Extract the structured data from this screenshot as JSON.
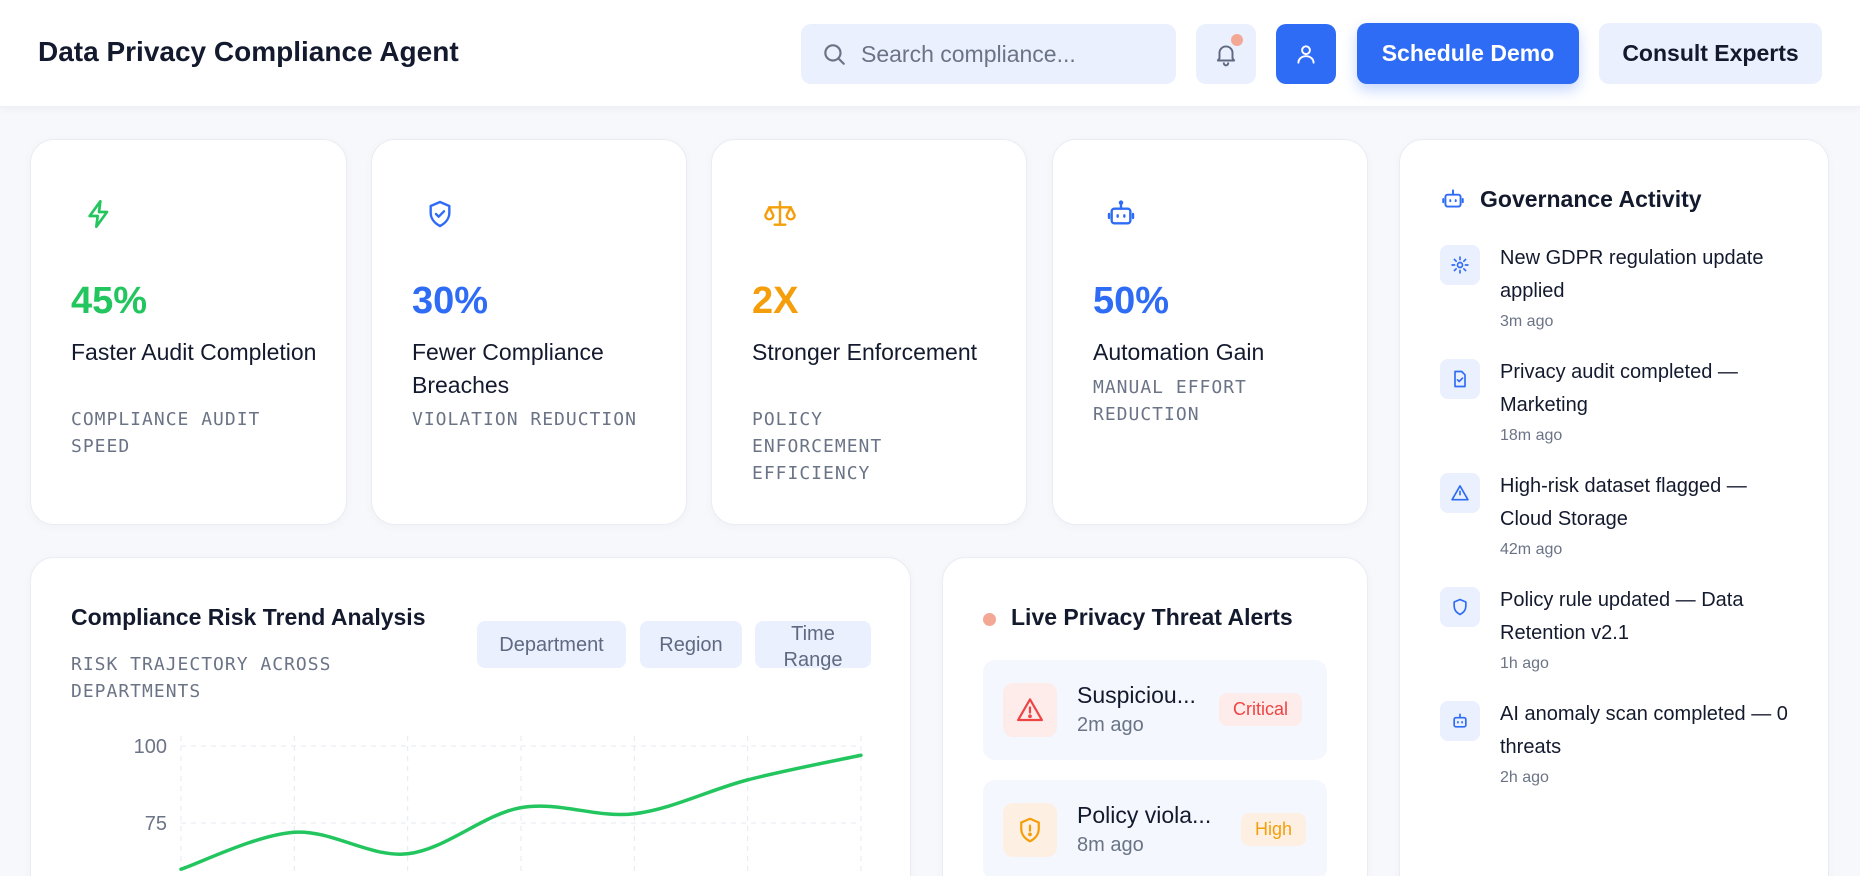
{
  "header": {
    "title": "Data Privacy Compliance Agent",
    "search_placeholder": "Search compliance...",
    "schedule_demo_label": "Schedule Demo",
    "consult_experts_label": "Consult Experts"
  },
  "colors": {
    "green": "#22c55e",
    "blue": "#2f6cf5",
    "orange": "#f59e0b",
    "red": "#ef4444",
    "notification": "#f3a896"
  },
  "stats": [
    {
      "icon": "lightning-icon",
      "value": "45%",
      "label": "Faster Audit Completion",
      "sub": "COMPLIANCE AUDIT SPEED",
      "color": "#22c55e"
    },
    {
      "icon": "shield-check-icon",
      "value": "30%",
      "label": "Fewer Compliance Breaches",
      "sub": "VIOLATION REDUCTION",
      "color": "#2f6cf5"
    },
    {
      "icon": "scale-icon",
      "value": "2X",
      "label": "Stronger Enforcement",
      "sub": "POLICY ENFORCEMENT EFFICIENCY",
      "color": "#f59e0b"
    },
    {
      "icon": "robot-icon",
      "value": "50%",
      "label": "Automation Gain",
      "sub": "MANUAL EFFORT REDUCTION",
      "color": "#2f6cf5"
    }
  ],
  "trend": {
    "title": "Compliance Risk Trend Analysis",
    "subtitle": "RISK TRAJECTORY ACROSS DEPARTMENTS",
    "filters": [
      "Department",
      "Region",
      "Time Range"
    ]
  },
  "chart_data": {
    "type": "line",
    "title": "Compliance Risk Trend Analysis",
    "subtitle": "RISK TRAJECTORY ACROSS DEPARTMENTS",
    "xlabel": "",
    "ylabel": "",
    "ylim": [
      50,
      100
    ],
    "yticks": [
      "100",
      "75"
    ],
    "grid": true,
    "series": [
      {
        "values": [
          60,
          72,
          65,
          80,
          78,
          89,
          97
        ],
        "color": "#22c55e"
      }
    ]
  },
  "alerts": {
    "title": "Live Privacy Threat Alerts",
    "items": [
      {
        "icon": "warning-triangle-icon",
        "title": "Suspiciou...",
        "time": "2m ago",
        "badge": "Critical",
        "color": "#ef4444"
      },
      {
        "icon": "shield-alert-icon",
        "title": "Policy viola...",
        "time": "8m ago",
        "badge": "High",
        "color": "#f59e0b"
      }
    ]
  },
  "activity": {
    "title": "Governance Activity",
    "items": [
      {
        "icon": "gear-icon",
        "text": "New GDPR regulation update applied",
        "time": "3m ago"
      },
      {
        "icon": "file-check-icon",
        "text": "Privacy audit completed — Marketing",
        "time": "18m ago"
      },
      {
        "icon": "warning-triangle-icon",
        "text": "High-risk dataset flagged — Cloud Storage",
        "time": "42m ago"
      },
      {
        "icon": "shield-icon",
        "text": "Policy rule updated — Data Retention v2.1",
        "time": "1h ago"
      },
      {
        "icon": "robot-icon",
        "text": "AI anomaly scan completed — 0 threats",
        "time": "2h ago"
      }
    ]
  }
}
